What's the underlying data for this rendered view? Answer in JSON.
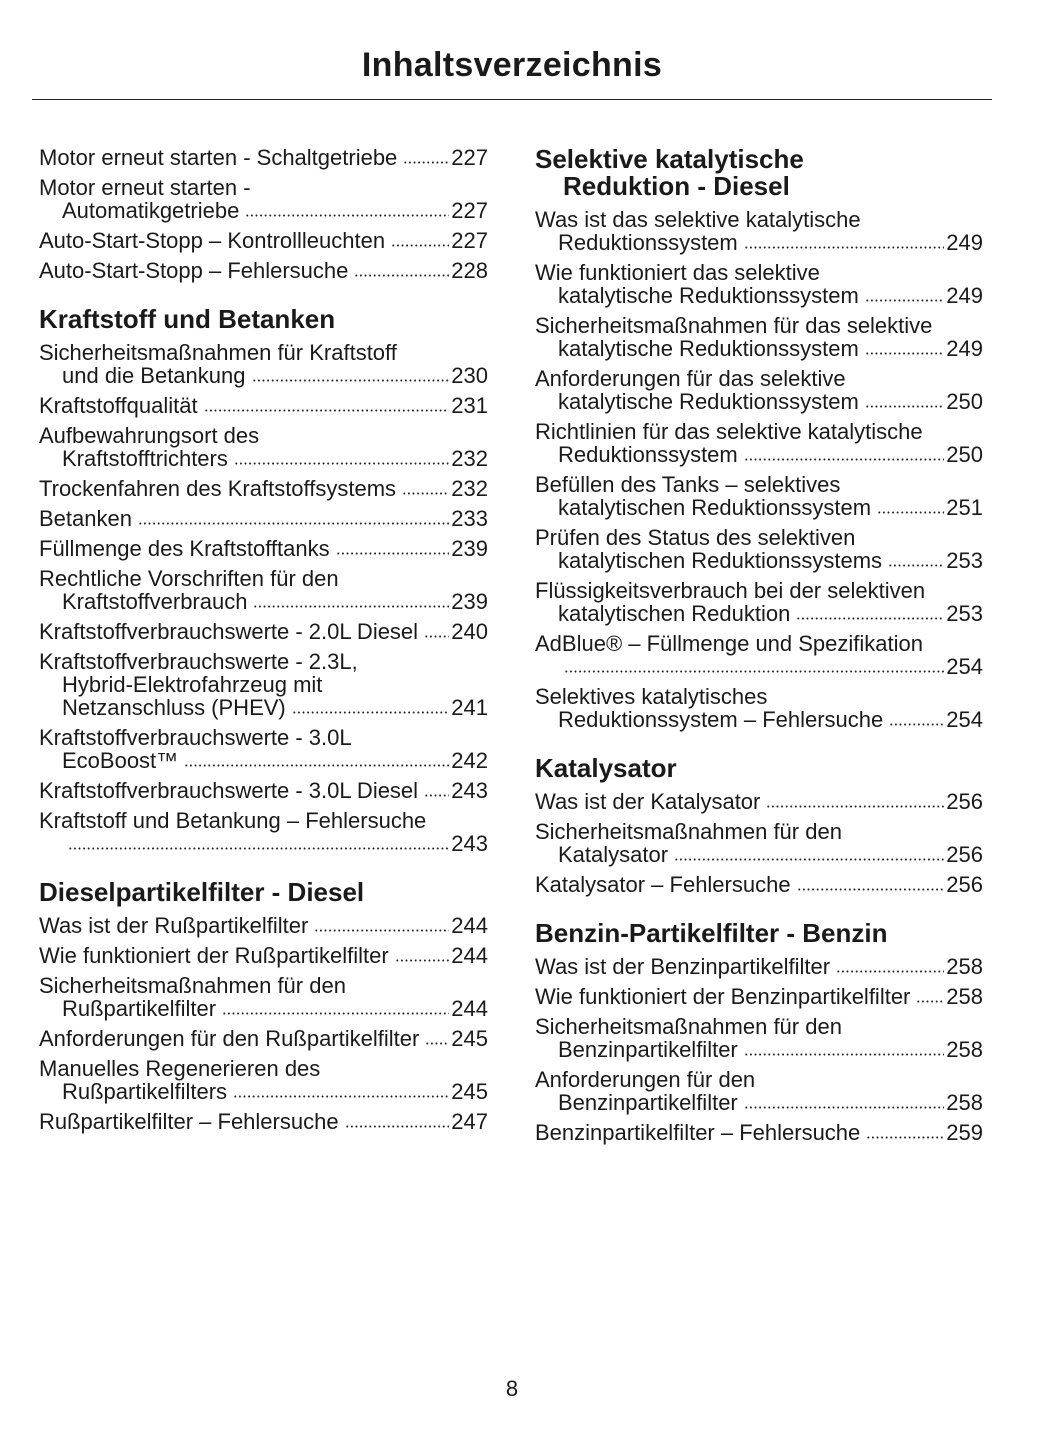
{
  "header": {
    "title": "Inhaltsverzeichnis"
  },
  "columns": [
    {
      "sections": [
        {
          "entries": [
            {
              "lines": [
                "Motor erneut starten - Schaltgetriebe"
              ],
              "page": 227
            },
            {
              "lines": [
                "Motor erneut starten -",
                "Automatikgetriebe"
              ],
              "page": 227
            },
            {
              "lines": [
                "Auto-Start-Stopp – Kontrollleuchten"
              ],
              "page": 227
            },
            {
              "lines": [
                "Auto-Start-Stopp – Fehlersuche"
              ],
              "page": 228
            }
          ]
        },
        {
          "heading": [
            "Kraftstoff und Betanken"
          ],
          "entries": [
            {
              "lines": [
                "Sicherheitsmaßnahmen für Kraftstoff",
                "und die Betankung"
              ],
              "page": 230
            },
            {
              "lines": [
                "Kraftstoffqualität"
              ],
              "page": 231
            },
            {
              "lines": [
                "Aufbewahrungsort des",
                "Kraftstofftrichters"
              ],
              "page": 232
            },
            {
              "lines": [
                "Trockenfahren des Kraftstoffsystems"
              ],
              "page": 232
            },
            {
              "lines": [
                "Betanken"
              ],
              "page": 233
            },
            {
              "lines": [
                "Füllmenge des Kraftstofftanks"
              ],
              "page": 239
            },
            {
              "lines": [
                "Rechtliche Vorschriften für den",
                "Kraftstoffverbrauch"
              ],
              "page": 239
            },
            {
              "lines": [
                "Kraftstoffverbrauchswerte - 2.0L Diesel"
              ],
              "page": 240
            },
            {
              "lines": [
                "Kraftstoffverbrauchswerte - 2.3L,",
                "Hybrid-Elektrofahrzeug mit",
                "Netzanschluss (PHEV)"
              ],
              "page": 241
            },
            {
              "lines": [
                "Kraftstoffverbrauchswerte - 3.0L",
                "EcoBoost™"
              ],
              "page": 242
            },
            {
              "lines": [
                "Kraftstoffverbrauchswerte - 3.0L Diesel"
              ],
              "page": 243
            },
            {
              "lines": [
                "Kraftstoff und Betankung – Fehlersuche"
              ],
              "page": 243
            }
          ]
        },
        {
          "heading": [
            "Dieselpartikelfilter - Diesel"
          ],
          "entries": [
            {
              "lines": [
                "Was ist der Rußpartikelfilter"
              ],
              "page": 244
            },
            {
              "lines": [
                "Wie funktioniert der Rußpartikelfilter"
              ],
              "page": 244
            },
            {
              "lines": [
                "Sicherheitsmaßnahmen für den",
                "Rußpartikelfilter"
              ],
              "page": 244
            },
            {
              "lines": [
                "Anforderungen für den Rußpartikelfilter"
              ],
              "page": 245
            },
            {
              "lines": [
                "Manuelles Regenerieren des",
                "Rußpartikelfilters"
              ],
              "page": 245
            },
            {
              "lines": [
                "Rußpartikelfilter – Fehlersuche"
              ],
              "page": 247
            }
          ]
        }
      ]
    },
    {
      "sections": [
        {
          "heading": [
            "Selektive katalytische",
            "Reduktion - Diesel"
          ],
          "entries": [
            {
              "lines": [
                "Was ist das selektive katalytische",
                "Reduktionssystem"
              ],
              "page": 249
            },
            {
              "lines": [
                "Wie funktioniert das selektive",
                "katalytische Reduktionssystem"
              ],
              "page": 249
            },
            {
              "lines": [
                "Sicherheitsmaßnahmen für das selektive",
                "katalytische Reduktionssystem"
              ],
              "page": 249
            },
            {
              "lines": [
                "Anforderungen für das selektive",
                "katalytische Reduktionssystem"
              ],
              "page": 250
            },
            {
              "lines": [
                "Richtlinien für das selektive katalytische",
                "Reduktionssystem"
              ],
              "page": 250
            },
            {
              "lines": [
                "Befüllen des Tanks – selektives",
                "katalytischen Reduktionssystem"
              ],
              "page": 251
            },
            {
              "lines": [
                "Prüfen des Status des selektiven",
                "katalytischen Reduktionssystems"
              ],
              "page": 253
            },
            {
              "lines": [
                "Flüssigkeitsverbrauch bei der selektiven",
                "katalytischen Reduktion"
              ],
              "page": 253
            },
            {
              "lines": [
                "AdBlue® – Füllmenge und Spezifikation"
              ],
              "page": 254
            },
            {
              "lines": [
                "Selektives katalytisches",
                "Reduktionssystem – Fehlersuche"
              ],
              "page": 254
            }
          ]
        },
        {
          "heading": [
            "Katalysator"
          ],
          "entries": [
            {
              "lines": [
                "Was ist der Katalysator"
              ],
              "page": 256
            },
            {
              "lines": [
                "Sicherheitsmaßnahmen für den",
                "Katalysator"
              ],
              "page": 256
            },
            {
              "lines": [
                "Katalysator – Fehlersuche"
              ],
              "page": 256
            }
          ]
        },
        {
          "heading": [
            "Benzin-Partikelfilter - Benzin"
          ],
          "entries": [
            {
              "lines": [
                "Was ist der Benzinpartikelfilter"
              ],
              "page": 258
            },
            {
              "lines": [
                "Wie funktioniert der Benzinpartikelfilter"
              ],
              "page": 258
            },
            {
              "lines": [
                "Sicherheitsmaßnahmen für den",
                "Benzinpartikelfilter"
              ],
              "page": 258
            },
            {
              "lines": [
                "Anforderungen für den",
                "Benzinpartikelfilter"
              ],
              "page": 258
            },
            {
              "lines": [
                "Benzinpartikelfilter – Fehlersuche"
              ],
              "page": 259
            }
          ]
        }
      ]
    }
  ],
  "footer": {
    "page_number": 8
  }
}
